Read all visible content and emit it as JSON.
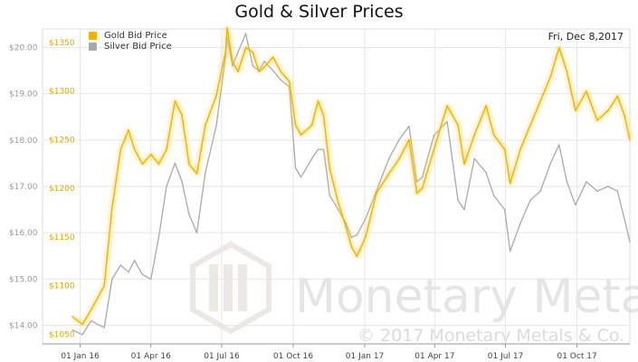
{
  "chart_data": {
    "type": "line",
    "title": "Gold & Silver Prices",
    "date_label": "Fri, Dec 8,2017",
    "legend": [
      "Gold Bid Price",
      "Silver Bid Price"
    ],
    "watermark": "Monetary Metals",
    "copyright": "© 2017 Monetary Metals & Co.",
    "x_ticks": [
      "01 Jan 16",
      "01 Apr 16",
      "01 Jul 16",
      "01 Oct 16",
      "01 Jan 17",
      "01 Apr 17",
      "01 Jul 17",
      "01 Oct 17"
    ],
    "left_axis": {
      "ticks": [
        "$20.00",
        "$19.00",
        "$18.00",
        "$17.00",
        "$16.00",
        "$15.00",
        "$14.00"
      ],
      "ylim": [
        13.6,
        20.4
      ]
    },
    "right_axis": {
      "ticks": [
        "$1350",
        "$1300",
        "$1250",
        "$1200",
        "$1150",
        "$1100",
        "$1050"
      ],
      "ylim": [
        1040,
        1364
      ]
    },
    "x": [
      "2015-12-22",
      "2016-01-04",
      "2016-01-15",
      "2016-02-01",
      "2016-02-11",
      "2016-02-22",
      "2016-03-03",
      "2016-03-11",
      "2016-03-21",
      "2016-04-01",
      "2016-04-11",
      "2016-04-21",
      "2016-05-02",
      "2016-05-11",
      "2016-05-20",
      "2016-05-30",
      "2016-06-10",
      "2016-06-24",
      "2016-07-06",
      "2016-07-08",
      "2016-07-15",
      "2016-07-22",
      "2016-08-01",
      "2016-08-10",
      "2016-08-18",
      "2016-08-25",
      "2016-09-05",
      "2016-09-15",
      "2016-09-26",
      "2016-10-04",
      "2016-10-11",
      "2016-10-25",
      "2016-11-02",
      "2016-11-09",
      "2016-11-17",
      "2016-11-28",
      "2016-12-08",
      "2016-12-15",
      "2016-12-22",
      "2017-01-02",
      "2017-01-16",
      "2017-02-01",
      "2017-02-14",
      "2017-02-27",
      "2017-03-09",
      "2017-03-16",
      "2017-03-31",
      "2017-04-17",
      "2017-05-01",
      "2017-05-09",
      "2017-05-22",
      "2017-06-06",
      "2017-06-16",
      "2017-06-30",
      "2017-07-07",
      "2017-07-20",
      "2017-08-02",
      "2017-08-15",
      "2017-08-28",
      "2017-09-08",
      "2017-09-18",
      "2017-09-29",
      "2017-10-13",
      "2017-10-27",
      "2017-11-10",
      "2017-11-22",
      "2017-12-01",
      "2017-12-08"
    ],
    "series": [
      {
        "name": "Gold Bid Price",
        "color": "#f0b400",
        "values": [
          1068,
          1060,
          1075,
          1100,
          1180,
          1240,
          1260,
          1240,
          1225,
          1235,
          1225,
          1240,
          1290,
          1275,
          1225,
          1215,
          1265,
          1295,
          1340,
          1365,
          1330,
          1320,
          1345,
          1340,
          1320,
          1325,
          1335,
          1320,
          1310,
          1265,
          1255,
          1265,
          1290,
          1275,
          1220,
          1185,
          1160,
          1140,
          1130,
          1150,
          1195,
          1215,
          1230,
          1250,
          1195,
          1200,
          1240,
          1285,
          1265,
          1225,
          1255,
          1285,
          1255,
          1240,
          1205,
          1240,
          1265,
          1290,
          1315,
          1345,
          1320,
          1280,
          1300,
          1270,
          1280,
          1295,
          1275,
          1250
        ]
      },
      {
        "name": "Silver Bid Price",
        "color": "#a9a9a9",
        "values": [
          13.9,
          13.8,
          14.1,
          13.95,
          15.0,
          15.3,
          15.15,
          15.4,
          15.1,
          15.0,
          15.9,
          17.0,
          17.5,
          17.1,
          16.4,
          16.0,
          17.3,
          18.3,
          19.8,
          20.2,
          19.6,
          19.9,
          20.3,
          19.6,
          19.5,
          19.7,
          19.5,
          19.3,
          19.15,
          17.4,
          17.2,
          17.6,
          17.8,
          17.8,
          16.8,
          16.5,
          16.2,
          15.9,
          15.95,
          16.3,
          16.9,
          17.6,
          18.0,
          18.3,
          17.1,
          17.2,
          18.1,
          18.4,
          16.7,
          16.5,
          17.6,
          17.3,
          16.8,
          16.5,
          15.6,
          16.2,
          16.7,
          16.9,
          17.5,
          17.9,
          17.1,
          16.6,
          17.1,
          16.9,
          17.0,
          16.9,
          16.3,
          15.8
        ]
      }
    ]
  }
}
